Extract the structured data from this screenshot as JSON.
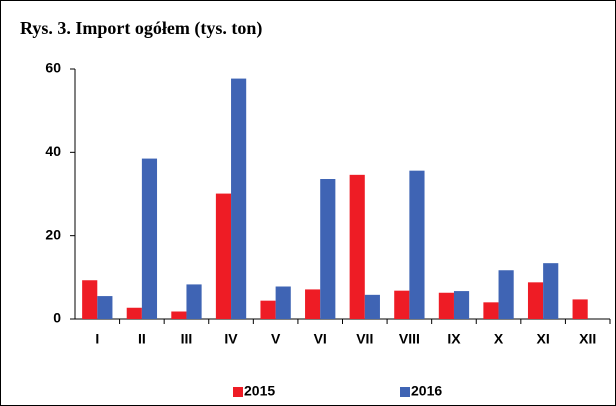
{
  "chart_data": {
    "type": "bar",
    "title": "Rys. 3. Import ogółem (tys. ton)",
    "categories": [
      "I",
      "II",
      "III",
      "IV",
      "V",
      "VI",
      "VII",
      "VIII",
      "IX",
      "X",
      "XI",
      "XII"
    ],
    "series": [
      {
        "name": "2015",
        "color": "#ee1c25",
        "values": [
          9.3,
          2.7,
          1.8,
          30.1,
          4.4,
          7.1,
          34.6,
          6.8,
          6.3,
          4.0,
          8.8,
          4.7
        ]
      },
      {
        "name": "2016",
        "color": "#3f64b4",
        "values": [
          5.5,
          38.5,
          8.3,
          57.7,
          7.8,
          33.6,
          5.8,
          35.6,
          6.7,
          11.7,
          13.4,
          null
        ]
      }
    ],
    "ylim": [
      0,
      60
    ],
    "yticks": [
      0,
      20,
      40,
      60
    ],
    "grid": false,
    "legend": "bottom"
  }
}
